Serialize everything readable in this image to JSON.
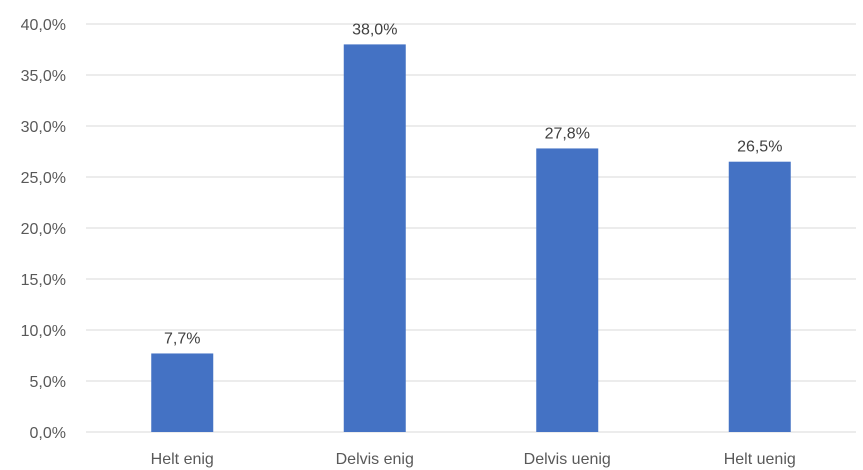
{
  "chart_data": {
    "type": "bar",
    "categories": [
      "Helt enig",
      "Delvis enig",
      "Delvis uenig",
      "Helt uenig"
    ],
    "values": [
      7.7,
      38.0,
      27.8,
      26.5
    ],
    "data_labels": [
      "7,7%",
      "38,0%",
      "27,8%",
      "26,5%"
    ],
    "y_ticks": [
      "0,0%",
      "5,0%",
      "10,0%",
      "15,0%",
      "20,0%",
      "25,0%",
      "30,0%",
      "35,0%",
      "40,0%"
    ],
    "ylim": [
      0,
      40
    ],
    "grid": true,
    "legend": "none",
    "bar_color": "#4472C4",
    "title": "",
    "xlabel": "",
    "ylabel": ""
  }
}
